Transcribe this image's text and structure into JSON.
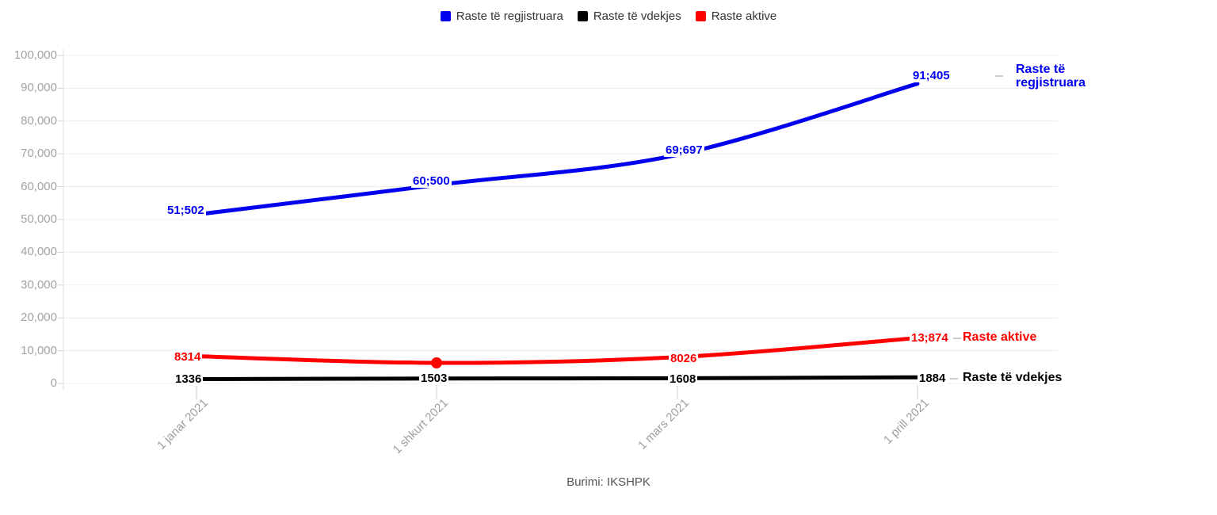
{
  "legend": {
    "items": [
      {
        "label": "Raste të regjistruara",
        "color": "#0000ee"
      },
      {
        "label": "Raste të vdekjes",
        "color": "#000000"
      },
      {
        "label": "Raste aktive",
        "color": "#ff0000"
      }
    ]
  },
  "chart_data": {
    "type": "line",
    "title": "",
    "categories": [
      "1 janar 2021",
      "1 shkurt 2021",
      "1 mars 2021",
      "1 prill 2021"
    ],
    "yticks": [
      "100,000",
      "90,000",
      "80,000",
      "70,000",
      "60,000",
      "50,000",
      "40,000",
      "30,000",
      "20,000",
      "10,000",
      "0"
    ],
    "ylim": [
      0,
      100000
    ],
    "grid": true,
    "legend_position": "top",
    "series": [
      {
        "name": "Raste të regjistruara",
        "color": "#0000ee",
        "values": [
          51502,
          60500,
          69697,
          91405
        ],
        "point_labels": [
          "51;502",
          "60;500",
          "69;697",
          "91;405"
        ],
        "end_label": "Raste të regjistruara"
      },
      {
        "name": "Raste të vdekjes",
        "color": "#000000",
        "values": [
          1336,
          1503,
          1608,
          1884
        ],
        "point_labels": [
          "1336",
          "1503",
          "1608",
          "1884"
        ],
        "end_label": "Raste të vdekjes"
      },
      {
        "name": "Raste aktive",
        "color": "#ff0000",
        "values": [
          8314,
          6280,
          8026,
          13874
        ],
        "point_labels": [
          "8314",
          "",
          "8026",
          "13;874"
        ],
        "end_label": "Raste aktive",
        "marker_index": 1
      }
    ],
    "source": "Burimi: IKSHPK"
  }
}
